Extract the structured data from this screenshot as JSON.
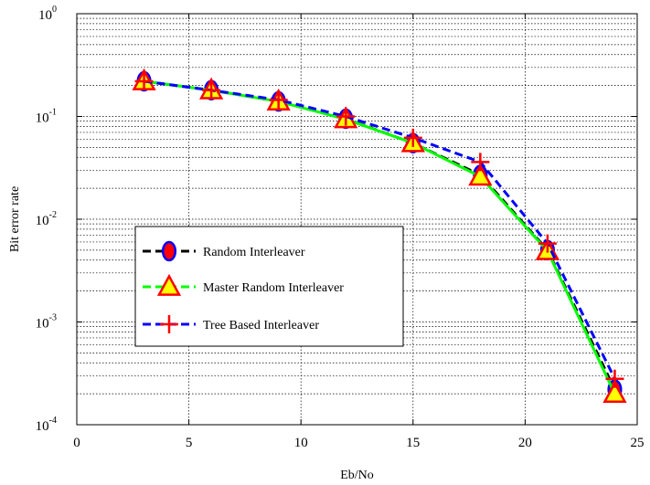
{
  "chart_data": {
    "type": "line",
    "xlabel": "Eb/No",
    "ylabel": "Bit error rate",
    "xlim": [
      0,
      25
    ],
    "ylim": [
      0.0001,
      1
    ],
    "yscale": "log",
    "grid": true,
    "legend_position": "lower-left",
    "x_ticks": [
      "0",
      "5",
      "10",
      "15",
      "20",
      "25"
    ],
    "y_ticks": [
      {
        "base": "10",
        "exp": "0"
      },
      {
        "base": "10",
        "exp": "-1"
      },
      {
        "base": "10",
        "exp": "-2"
      },
      {
        "base": "10",
        "exp": "-3"
      },
      {
        "base": "10",
        "exp": "-4"
      }
    ],
    "x": [
      3,
      6,
      9,
      12,
      15,
      18,
      21,
      24
    ],
    "series": [
      {
        "name": "Random Interleaver",
        "values": [
          0.22,
          0.18,
          0.14,
          0.095,
          0.055,
          0.027,
          0.005,
          0.00022
        ],
        "line_color": "#000000",
        "marker": "circle",
        "marker_fill": "#ff0000",
        "marker_edge": "#0000ff"
      },
      {
        "name": "Master Random Interleaver",
        "values": [
          0.22,
          0.18,
          0.14,
          0.094,
          0.055,
          0.026,
          0.0049,
          0.0002
        ],
        "line_color": "#00ff00",
        "marker": "triangle",
        "marker_fill": "#ffff00",
        "marker_edge": "#ff0000"
      },
      {
        "name": "Tree Based Interleaver",
        "values": [
          0.22,
          0.18,
          0.145,
          0.1,
          0.062,
          0.036,
          0.0058,
          0.00028
        ],
        "line_color": "#0000ff",
        "marker": "plus",
        "marker_fill": "none",
        "marker_edge": "#ff0000"
      }
    ]
  }
}
